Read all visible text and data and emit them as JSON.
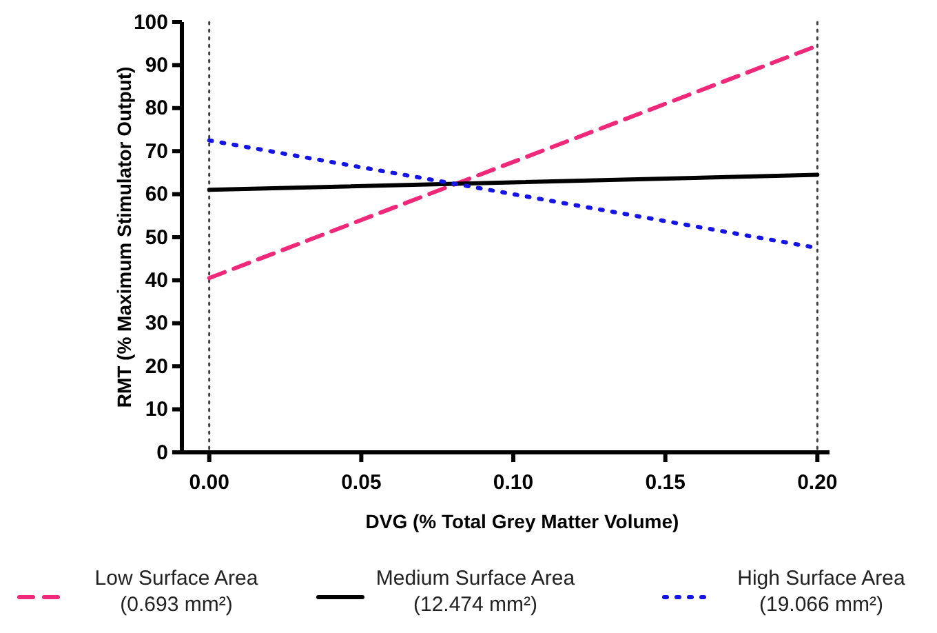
{
  "chart_data": {
    "type": "line",
    "xlabel": "DVG (% Total Grey Matter Volume)",
    "ylabel": "RMT (% Maximum Stimulator Output)",
    "x": [
      0,
      0.2
    ],
    "series": [
      {
        "name": "Low Surface Area (0.693 mm²)",
        "color": "#f0287a",
        "values": [
          40.5,
          94.5
        ],
        "line_style": "dashed"
      },
      {
        "name": "Medium Surface Area (12.474 mm²)",
        "color": "#000000",
        "values": [
          61,
          64.5
        ],
        "line_style": "solid"
      },
      {
        "name": "High Surface Area (19.066 mm²)",
        "color": "#1414e6",
        "values": [
          72.5,
          47.5
        ],
        "line_style": "dotted"
      }
    ],
    "xlim": [
      -0.009,
      0.204
    ],
    "xticks": [
      {
        "value": 0,
        "label": "0.00"
      },
      {
        "value": 0.05,
        "label": "0.05"
      },
      {
        "value": 0.1,
        "label": "0.10"
      },
      {
        "value": 0.15,
        "label": "0.15"
      },
      {
        "value": 0.2,
        "label": "0.20"
      }
    ],
    "ylim": [
      0,
      100
    ],
    "yticks": [
      0,
      10,
      20,
      30,
      40,
      50,
      60,
      70,
      80,
      90,
      100
    ],
    "ref_lines": [
      {
        "axis": "x",
        "value": 0,
        "color": "#404040",
        "line_style": "dotted"
      },
      {
        "axis": "x",
        "value": 0.2,
        "color": "#404040",
        "line_style": "dotted"
      }
    ],
    "grid": false,
    "legend": "bottom",
    "marker": "none"
  }
}
